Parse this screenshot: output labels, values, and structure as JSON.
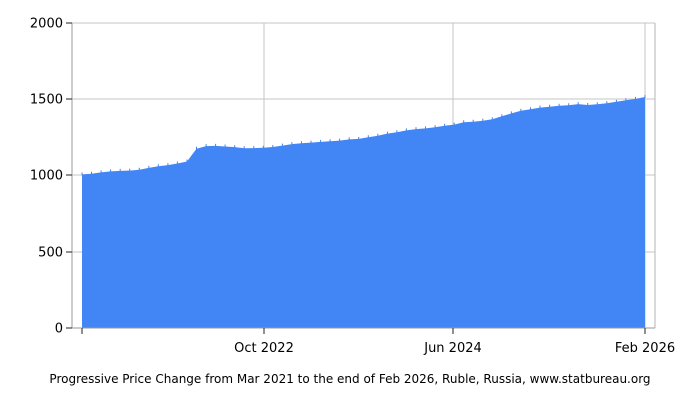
{
  "title": "Progressive Price Change from Mar 2021 to the end of Feb 2026, Ruble, Russia, www.statbureau.org",
  "chart_data": {
    "type": "area",
    "title": "Progressive Price Change from Mar 2021 to the end of Feb 2026, Ruble, Russia, www.statbureau.org",
    "x": [
      "Mar 2021",
      "Apr 2021",
      "May 2021",
      "Jun 2021",
      "Jul 2021",
      "Aug 2021",
      "Sep 2021",
      "Oct 2021",
      "Nov 2021",
      "Dec 2021",
      "Jan 2022",
      "Feb 2022",
      "Mar 2022",
      "Apr 2022",
      "May 2022",
      "Jun 2022",
      "Jul 2022",
      "Aug 2022",
      "Sep 2022",
      "Oct 2022",
      "Nov 2022",
      "Dec 2022",
      "Jan 2023",
      "Feb 2023",
      "Mar 2023",
      "Apr 2023",
      "May 2023",
      "Jun 2023",
      "Jul 2023",
      "Aug 2023",
      "Sep 2023",
      "Oct 2023",
      "Nov 2023",
      "Dec 2023",
      "Jan 2024",
      "Feb 2024",
      "Mar 2024",
      "Apr 2024",
      "May 2024",
      "Jun 2024",
      "Jul 2024",
      "Aug 2024",
      "Sep 2024",
      "Oct 2024",
      "Nov 2024",
      "Dec 2024",
      "Jan 2025",
      "Feb 2025",
      "Mar 2025",
      "Apr 2025",
      "May 2025",
      "Jun 2025",
      "Jul 2025",
      "Aug 2025",
      "Sep 2025",
      "Oct 2025",
      "Nov 2025",
      "Dec 2025",
      "Jan 2026",
      "Feb 2026"
    ],
    "values": [
      1007,
      1012,
      1020,
      1027,
      1030,
      1032,
      1038,
      1050,
      1060,
      1068,
      1079,
      1092,
      1175,
      1193,
      1194,
      1190,
      1186,
      1179,
      1180,
      1182,
      1187,
      1196,
      1206,
      1211,
      1216,
      1220,
      1224,
      1229,
      1237,
      1240,
      1251,
      1261,
      1275,
      1284,
      1296,
      1304,
      1309,
      1316,
      1326,
      1334,
      1349,
      1352,
      1359,
      1369,
      1388,
      1407,
      1424,
      1435,
      1445,
      1451,
      1457,
      1460,
      1468,
      1462,
      1467,
      1474,
      1483,
      1493,
      1502,
      1515
    ],
    "xticks": [
      {
        "label": "Oct 2022",
        "index": 19
      },
      {
        "label": "Jun 2024",
        "index": 39
      },
      {
        "label": "Feb 2026",
        "index": 59
      }
    ],
    "yticks": [
      "0",
      "500",
      "1000",
      "1500",
      "2000"
    ],
    "ylim": [
      0,
      2000
    ],
    "xlabel": "",
    "ylabel": "",
    "grid": true,
    "legend_position": "none",
    "fill_color": "#4285f4"
  },
  "colors": {
    "area_fill": "#4285f4",
    "gridline": "#c6c6c6",
    "axis": "#999999",
    "tick": "#222222",
    "text": "#000000",
    "background": "#ffffff"
  }
}
